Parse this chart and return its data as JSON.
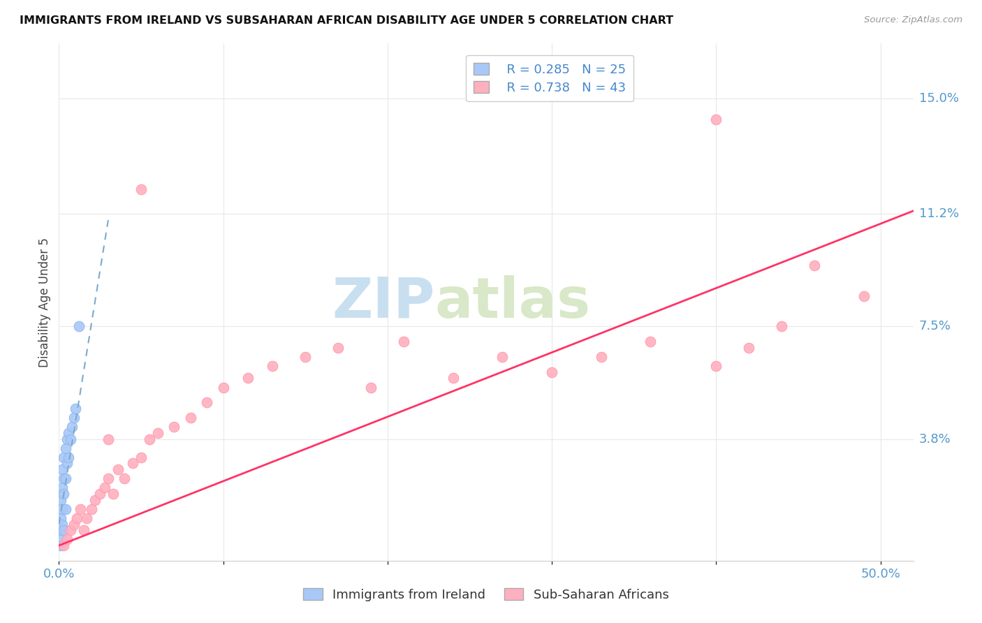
{
  "title": "IMMIGRANTS FROM IRELAND VS SUBSAHARAN AFRICAN DISABILITY AGE UNDER 5 CORRELATION CHART",
  "source": "Source: ZipAtlas.com",
  "ylabel": "Disability Age Under 5",
  "xlim": [
    0.0,
    0.52
  ],
  "ylim": [
    -0.002,
    0.168
  ],
  "ytick_positions": [
    0.038,
    0.075,
    0.112,
    0.15
  ],
  "ytick_labels": [
    "3.8%",
    "7.5%",
    "11.2%",
    "15.0%"
  ],
  "ireland_R": "0.285",
  "ireland_N": "25",
  "subsaharan_R": "0.738",
  "subsaharan_N": "43",
  "ireland_color": "#a8c8f8",
  "ireland_line_color": "#7aaad0",
  "subsaharan_color": "#ffb0c0",
  "subsaharan_line_color": "#ff3366",
  "legend_label_ireland": "Immigrants from Ireland",
  "legend_label_subsaharan": "Sub-Saharan Africans",
  "ireland_x": [
    0.001,
    0.001,
    0.001,
    0.002,
    0.002,
    0.002,
    0.002,
    0.003,
    0.003,
    0.003,
    0.004,
    0.004,
    0.005,
    0.005,
    0.006,
    0.006,
    0.007,
    0.008,
    0.009,
    0.01,
    0.001,
    0.002,
    0.003,
    0.004,
    0.012
  ],
  "ireland_y": [
    0.008,
    0.012,
    0.018,
    0.01,
    0.015,
    0.022,
    0.028,
    0.02,
    0.025,
    0.032,
    0.025,
    0.035,
    0.03,
    0.038,
    0.032,
    0.04,
    0.038,
    0.042,
    0.045,
    0.048,
    0.003,
    0.005,
    0.008,
    0.015,
    0.075
  ],
  "subsaharan_x": [
    0.003,
    0.005,
    0.007,
    0.009,
    0.011,
    0.013,
    0.015,
    0.017,
    0.02,
    0.022,
    0.025,
    0.028,
    0.03,
    0.033,
    0.036,
    0.04,
    0.045,
    0.05,
    0.055,
    0.06,
    0.07,
    0.08,
    0.09,
    0.1,
    0.115,
    0.13,
    0.15,
    0.17,
    0.19,
    0.21,
    0.24,
    0.27,
    0.3,
    0.33,
    0.36,
    0.4,
    0.42,
    0.44,
    0.46,
    0.05,
    0.4,
    0.49,
    0.03
  ],
  "subsaharan_y": [
    0.003,
    0.005,
    0.008,
    0.01,
    0.012,
    0.015,
    0.008,
    0.012,
    0.015,
    0.018,
    0.02,
    0.022,
    0.025,
    0.02,
    0.028,
    0.025,
    0.03,
    0.032,
    0.038,
    0.04,
    0.042,
    0.045,
    0.05,
    0.055,
    0.058,
    0.062,
    0.065,
    0.068,
    0.055,
    0.07,
    0.058,
    0.065,
    0.06,
    0.065,
    0.07,
    0.062,
    0.068,
    0.075,
    0.095,
    0.12,
    0.143,
    0.085,
    0.038
  ],
  "ssa_trend_x0": 0.0,
  "ssa_trend_y0": 0.003,
  "ssa_trend_x1": 0.52,
  "ssa_trend_y1": 0.113,
  "ire_trend_x0": 0.0,
  "ire_trend_y0": 0.01,
  "ire_trend_x1": 0.03,
  "ire_trend_y1": 0.11,
  "watermark_zip": "ZIP",
  "watermark_atlas": "atlas",
  "watermark_color_zip": "#c8dff0",
  "watermark_color_atlas": "#d8e8c8",
  "background_color": "#ffffff",
  "grid_color": "#e8e8e8"
}
